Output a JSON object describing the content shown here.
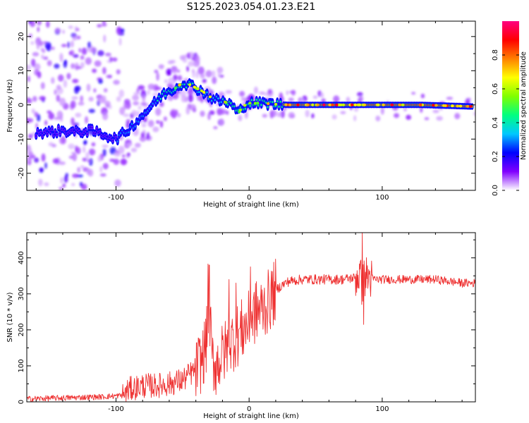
{
  "figure": {
    "title": "S125.2023.054.01.23.E21"
  },
  "chart_data": [
    {
      "type": "heatmap",
      "title": "S125.2023.054.01.23.E21",
      "xlabel": "Height of straight line (km)",
      "ylabel": "Frequency (Hz)",
      "xlim": [
        -167,
        170
      ],
      "ylim": [
        -25,
        24.5
      ],
      "xticks": [
        -100,
        0,
        100
      ],
      "yticks": [
        -20,
        -10,
        0,
        10,
        20
      ],
      "colorbar": {
        "label": "Normalized spectral amplitude",
        "range": [
          0,
          1
        ],
        "ticks": [
          "0.0",
          "0.2",
          "0.4",
          "0.6",
          "0.8"
        ],
        "colormap": [
          "#ffffff",
          "#8000ff",
          "#0000ff",
          "#00c8ff",
          "#00ff80",
          "#80ff00",
          "#ffff00",
          "#ff8000",
          "#ff0000",
          "#ff0080"
        ]
      },
      "ridge": {
        "x": [
          -150,
          -140,
          -130,
          -120,
          -110,
          -100,
          -90,
          -80,
          -70,
          -65,
          -60,
          -55,
          -50,
          -45,
          -40,
          -35,
          -30,
          -25,
          -20,
          -15,
          -12,
          -10,
          -8,
          -5,
          0,
          10,
          20,
          30,
          50,
          80,
          100,
          130,
          170
        ],
        "y": [
          -8,
          -7.5,
          -8,
          -7.5,
          -8.5,
          -10,
          -7,
          -3,
          1,
          3,
          4,
          5,
          6.5,
          6,
          5,
          4,
          2.5,
          1.5,
          1,
          0.5,
          -0.5,
          -1.5,
          -2.5,
          -0.5,
          0.5,
          0.5,
          0.2,
          0,
          0,
          0,
          0,
          0,
          -0.5
        ]
      }
    },
    {
      "type": "line",
      "xlabel": "Height of straight line (km)",
      "ylabel": "SNR (10 * v/v)",
      "xlim": [
        -167,
        170
      ],
      "ylim": [
        0,
        470
      ],
      "xticks": [
        -100,
        0,
        100
      ],
      "yticks": [
        0,
        100,
        200,
        300,
        400
      ],
      "color": "#ee3030",
      "series": [
        {
          "x": [
            -167,
            -150,
            -130,
            -110,
            -95,
            -90,
            -80,
            -70,
            -60,
            -50,
            -40,
            -35,
            -32,
            -30,
            -28,
            -25,
            -20,
            -15,
            -10,
            -5,
            0,
            5,
            10,
            15,
            20,
            25,
            30,
            40,
            50,
            60,
            70,
            80,
            83,
            85,
            87,
            90,
            95,
            100,
            120,
            140,
            160,
            170
          ],
          "y": [
            8,
            10,
            12,
            14,
            18,
            35,
            45,
            45,
            50,
            60,
            90,
            120,
            170,
            280,
            120,
            100,
            130,
            160,
            180,
            200,
            220,
            250,
            260,
            280,
            310,
            325,
            335,
            340,
            340,
            340,
            340,
            345,
            355,
            320,
            350,
            345,
            340,
            340,
            340,
            340,
            330,
            330
          ]
        }
      ],
      "spikes": [
        {
          "x": -31,
          "y": 383
        },
        {
          "x": -30,
          "y": 380
        },
        {
          "x": -15,
          "y": 340
        },
        {
          "x": -10,
          "y": 330
        },
        {
          "x": 1,
          "y": 375
        },
        {
          "x": 85,
          "y": 470
        },
        {
          "x": 86,
          "y": 215
        }
      ]
    }
  ]
}
